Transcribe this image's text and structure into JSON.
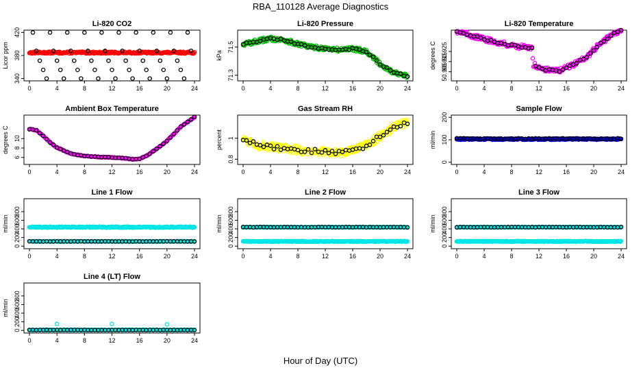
{
  "figure": {
    "title": "RBA_110128  Average Diagnostics",
    "xlabel": "Hour of Day (UTC)"
  },
  "chart_data": [
    {
      "type": "scatter",
      "title": "Li-820 CO2",
      "ylabel": "Licor ppm",
      "xlim": [
        0,
        24
      ],
      "xticks": [
        0,
        4,
        8,
        12,
        16,
        20,
        24
      ],
      "ylim": [
        336,
        424
      ],
      "yticks": [
        340,
        380,
        420
      ],
      "series": [
        {
          "color": "#ff0000",
          "style": "band",
          "center": 385,
          "spread": 1.5,
          "dense": true
        },
        {
          "color": "#000000",
          "style": "cycle",
          "pattern": [
            420,
            388,
            371,
            355,
            340
          ],
          "every": 0.5
        }
      ]
    },
    {
      "type": "scatter",
      "title": "Li-820 Pressure",
      "ylabel": "kPa",
      "xlim": [
        0,
        24
      ],
      "xticks": [
        0,
        4,
        8,
        12,
        16,
        20,
        24
      ],
      "ylim": [
        71.26,
        71.62
      ],
      "yticks": [
        71.3,
        71.5
      ],
      "series": [
        {
          "color": "#00bb00",
          "style": "curve",
          "points": [
            [
              0,
              71.52
            ],
            [
              2,
              71.54
            ],
            [
              4,
              71.56
            ],
            [
              6,
              71.55
            ],
            [
              8,
              71.52
            ],
            [
              10,
              71.5
            ],
            [
              12,
              71.49
            ],
            [
              14,
              71.48
            ],
            [
              16,
              71.49
            ],
            [
              18,
              71.47
            ],
            [
              20,
              71.38
            ],
            [
              22,
              71.32
            ],
            [
              24,
              71.29
            ]
          ],
          "spread": 0.015,
          "dense": true
        },
        {
          "color": "#000000",
          "style": "curve",
          "points": [
            [
              0,
              71.52
            ],
            [
              2,
              71.54
            ],
            [
              4,
              71.56
            ],
            [
              6,
              71.55
            ],
            [
              8,
              71.52
            ],
            [
              10,
              71.5
            ],
            [
              12,
              71.49
            ],
            [
              14,
              71.48
            ],
            [
              16,
              71.49
            ],
            [
              18,
              71.47
            ],
            [
              20,
              71.38
            ],
            [
              22,
              71.32
            ],
            [
              24,
              71.29
            ]
          ],
          "spread": 0.006
        }
      ]
    },
    {
      "type": "scatter",
      "title": "Li-820 Temperature",
      "ylabel": "degrees C",
      "xlim": [
        0,
        24
      ],
      "xticks": [
        0,
        4,
        8,
        12,
        16,
        20,
        24
      ],
      "ylim": [
        50.896,
        50.946
      ],
      "yticks": [
        50.905,
        50.915,
        50.925
      ],
      "series": [
        {
          "color": "#ff00ff",
          "style": "curve",
          "points": [
            [
              0,
              50.945
            ],
            [
              2,
              50.941
            ],
            [
              4,
              50.937
            ],
            [
              6,
              50.934
            ],
            [
              8,
              50.931
            ],
            [
              10,
              50.929
            ],
            [
              11,
              50.928
            ],
            [
              11.2,
              50.912
            ],
            [
              13,
              50.907
            ],
            [
              15,
              50.906
            ],
            [
              17,
              50.912
            ],
            [
              19,
              50.92
            ],
            [
              21,
              50.933
            ],
            [
              23,
              50.943
            ],
            [
              24,
              50.946
            ]
          ],
          "spread": 0.0022,
          "dense": true
        },
        {
          "color": "#000000",
          "style": "curve",
          "points": [
            [
              0,
              50.945
            ],
            [
              2,
              50.941
            ],
            [
              4,
              50.937
            ],
            [
              6,
              50.934
            ],
            [
              8,
              50.931
            ],
            [
              10,
              50.929
            ],
            [
              11,
              50.928
            ],
            [
              11.2,
              50.912
            ],
            [
              13,
              50.907
            ],
            [
              15,
              50.906
            ],
            [
              17,
              50.912
            ],
            [
              19,
              50.92
            ],
            [
              21,
              50.933
            ],
            [
              23,
              50.943
            ],
            [
              24,
              50.946
            ]
          ],
          "spread": 0.0008
        }
      ]
    },
    {
      "type": "scatter",
      "title": "Ambient Box Temperature",
      "ylabel": "degrees C",
      "xlim": [
        0,
        24
      ],
      "xticks": [
        0,
        4,
        8,
        12,
        16,
        20,
        24
      ],
      "ylim": [
        4.5,
        15
      ],
      "yticks": [
        6,
        8,
        10
      ],
      "series": [
        {
          "color": "#ff00ff",
          "style": "curve",
          "points": [
            [
              0,
              12.0
            ],
            [
              1,
              11.8
            ],
            [
              2,
              10.6
            ],
            [
              3,
              9.2
            ],
            [
              4,
              8.1
            ],
            [
              6,
              6.8
            ],
            [
              8,
              6.3
            ],
            [
              10,
              6.1
            ],
            [
              12,
              6.0
            ],
            [
              14,
              5.8
            ],
            [
              15,
              5.6
            ],
            [
              16,
              5.7
            ],
            [
              17,
              6.3
            ],
            [
              18,
              7.3
            ],
            [
              20,
              9.5
            ],
            [
              22,
              12.5
            ],
            [
              24,
              14.6
            ]
          ],
          "spread": 0.08,
          "dense": true
        },
        {
          "color": "#000000",
          "style": "curve",
          "points": [
            [
              0,
              12.0
            ],
            [
              1,
              11.8
            ],
            [
              2,
              10.6
            ],
            [
              3,
              9.2
            ],
            [
              4,
              8.1
            ],
            [
              6,
              6.8
            ],
            [
              8,
              6.3
            ],
            [
              10,
              6.1
            ],
            [
              12,
              6.0
            ],
            [
              14,
              5.8
            ],
            [
              15,
              5.6
            ],
            [
              16,
              5.7
            ],
            [
              17,
              6.3
            ],
            [
              18,
              7.3
            ],
            [
              20,
              9.5
            ],
            [
              22,
              12.5
            ],
            [
              24,
              14.6
            ]
          ],
          "spread": 0.04
        }
      ]
    },
    {
      "type": "scatter",
      "title": "Gas Stream RH",
      "ylabel": "percent",
      "xlim": [
        0,
        24
      ],
      "xticks": [
        0,
        4,
        8,
        12,
        16,
        20,
        24
      ],
      "ylim": [
        0.75,
        1.22
      ],
      "yticks": [
        0.8,
        1.0
      ],
      "series": [
        {
          "color": "#ffff00",
          "style": "curve",
          "points": [
            [
              0,
              1.0
            ],
            [
              2,
              0.94
            ],
            [
              4,
              0.91
            ],
            [
              6,
              0.9
            ],
            [
              8,
              0.89
            ],
            [
              10,
              0.88
            ],
            [
              12,
              0.87
            ],
            [
              14,
              0.86
            ],
            [
              16,
              0.88
            ],
            [
              18,
              0.93
            ],
            [
              20,
              1.02
            ],
            [
              22,
              1.1
            ],
            [
              24,
              1.15
            ]
          ],
          "spread": 0.04,
          "dense": true
        },
        {
          "color": "#000000",
          "style": "curve",
          "points": [
            [
              0,
              1.0
            ],
            [
              2,
              0.94
            ],
            [
              4,
              0.91
            ],
            [
              6,
              0.9
            ],
            [
              8,
              0.89
            ],
            [
              10,
              0.88
            ],
            [
              12,
              0.87
            ],
            [
              14,
              0.86
            ],
            [
              16,
              0.88
            ],
            [
              18,
              0.93
            ],
            [
              20,
              1.02
            ],
            [
              22,
              1.1
            ],
            [
              24,
              1.15
            ]
          ],
          "spread": 0.02
        }
      ]
    },
    {
      "type": "scatter",
      "title": "Sample Flow",
      "ylabel": "ml/min",
      "xlim": [
        0,
        24
      ],
      "xticks": [
        0,
        4,
        8,
        12,
        16,
        20,
        24
      ],
      "ylim": [
        -10,
        210
      ],
      "yticks": [
        0,
        100,
        200
      ],
      "series": [
        {
          "color": "#0000cc",
          "style": "band",
          "center": 103,
          "spread": 3,
          "dense": true
        },
        {
          "color": "#000000",
          "style": "band",
          "center": 105,
          "spread": 2
        }
      ]
    },
    {
      "type": "scatter",
      "title": "Line 1 Flow",
      "ylabel": "ml/min",
      "xlim": [
        0,
        24
      ],
      "xticks": [
        0,
        4,
        8,
        12,
        16,
        20,
        24
      ],
      "ylim": [
        -60,
        1100
      ],
      "yticks": [
        0,
        200,
        400,
        600,
        800
      ],
      "series": [
        {
          "color": "#00e5e5",
          "style": "band",
          "center": 440,
          "spread": 12,
          "dense": true
        },
        {
          "color": "#00e5e5",
          "style": "band",
          "center": 110,
          "spread": 6,
          "dense": true
        },
        {
          "color": "#000000",
          "style": "band",
          "center": 110,
          "spread": 3
        }
      ]
    },
    {
      "type": "scatter",
      "title": "Line 2 Flow",
      "ylabel": "ml/min",
      "xlim": [
        0,
        24
      ],
      "xticks": [
        0,
        4,
        8,
        12,
        16,
        20,
        24
      ],
      "ylim": [
        -60,
        1100
      ],
      "yticks": [
        0,
        200,
        400,
        600,
        800
      ],
      "series": [
        {
          "color": "#00e5e5",
          "style": "band",
          "center": 440,
          "spread": 8,
          "dense": true
        },
        {
          "color": "#00e5e5",
          "style": "band",
          "center": 110,
          "spread": 8,
          "dense": true
        },
        {
          "color": "#000000",
          "style": "band",
          "center": 440,
          "spread": 4
        }
      ]
    },
    {
      "type": "scatter",
      "title": "Line 3 Flow",
      "ylabel": "ml/min",
      "xlim": [
        0,
        24
      ],
      "xticks": [
        0,
        4,
        8,
        12,
        16,
        20,
        24
      ],
      "ylim": [
        -60,
        1100
      ],
      "yticks": [
        0,
        200,
        400,
        600,
        800
      ],
      "series": [
        {
          "color": "#00e5e5",
          "style": "band",
          "center": 440,
          "spread": 8,
          "dense": true
        },
        {
          "color": "#00e5e5",
          "style": "band",
          "center": 110,
          "spread": 8,
          "dense": true
        },
        {
          "color": "#000000",
          "style": "band",
          "center": 440,
          "spread": 4
        }
      ]
    },
    {
      "type": "scatter",
      "title": "Line 4 (LT) Flow",
      "ylabel": "ml/min",
      "xlim": [
        0,
        24
      ],
      "xticks": [
        0,
        4,
        8,
        12,
        16,
        20,
        24
      ],
      "ylim": [
        -60,
        1100
      ],
      "yticks": [
        0,
        200,
        400,
        600,
        800
      ],
      "series": [
        {
          "color": "#00e5e5",
          "style": "band",
          "center": 10,
          "spread": 5,
          "dense": true
        },
        {
          "color": "#000000",
          "style": "band",
          "center": 10,
          "spread": 3
        },
        {
          "color": "#00e5e5",
          "style": "points",
          "points": [
            [
              4,
              150
            ],
            [
              12,
              150
            ],
            [
              20,
              140
            ]
          ]
        }
      ]
    }
  ]
}
